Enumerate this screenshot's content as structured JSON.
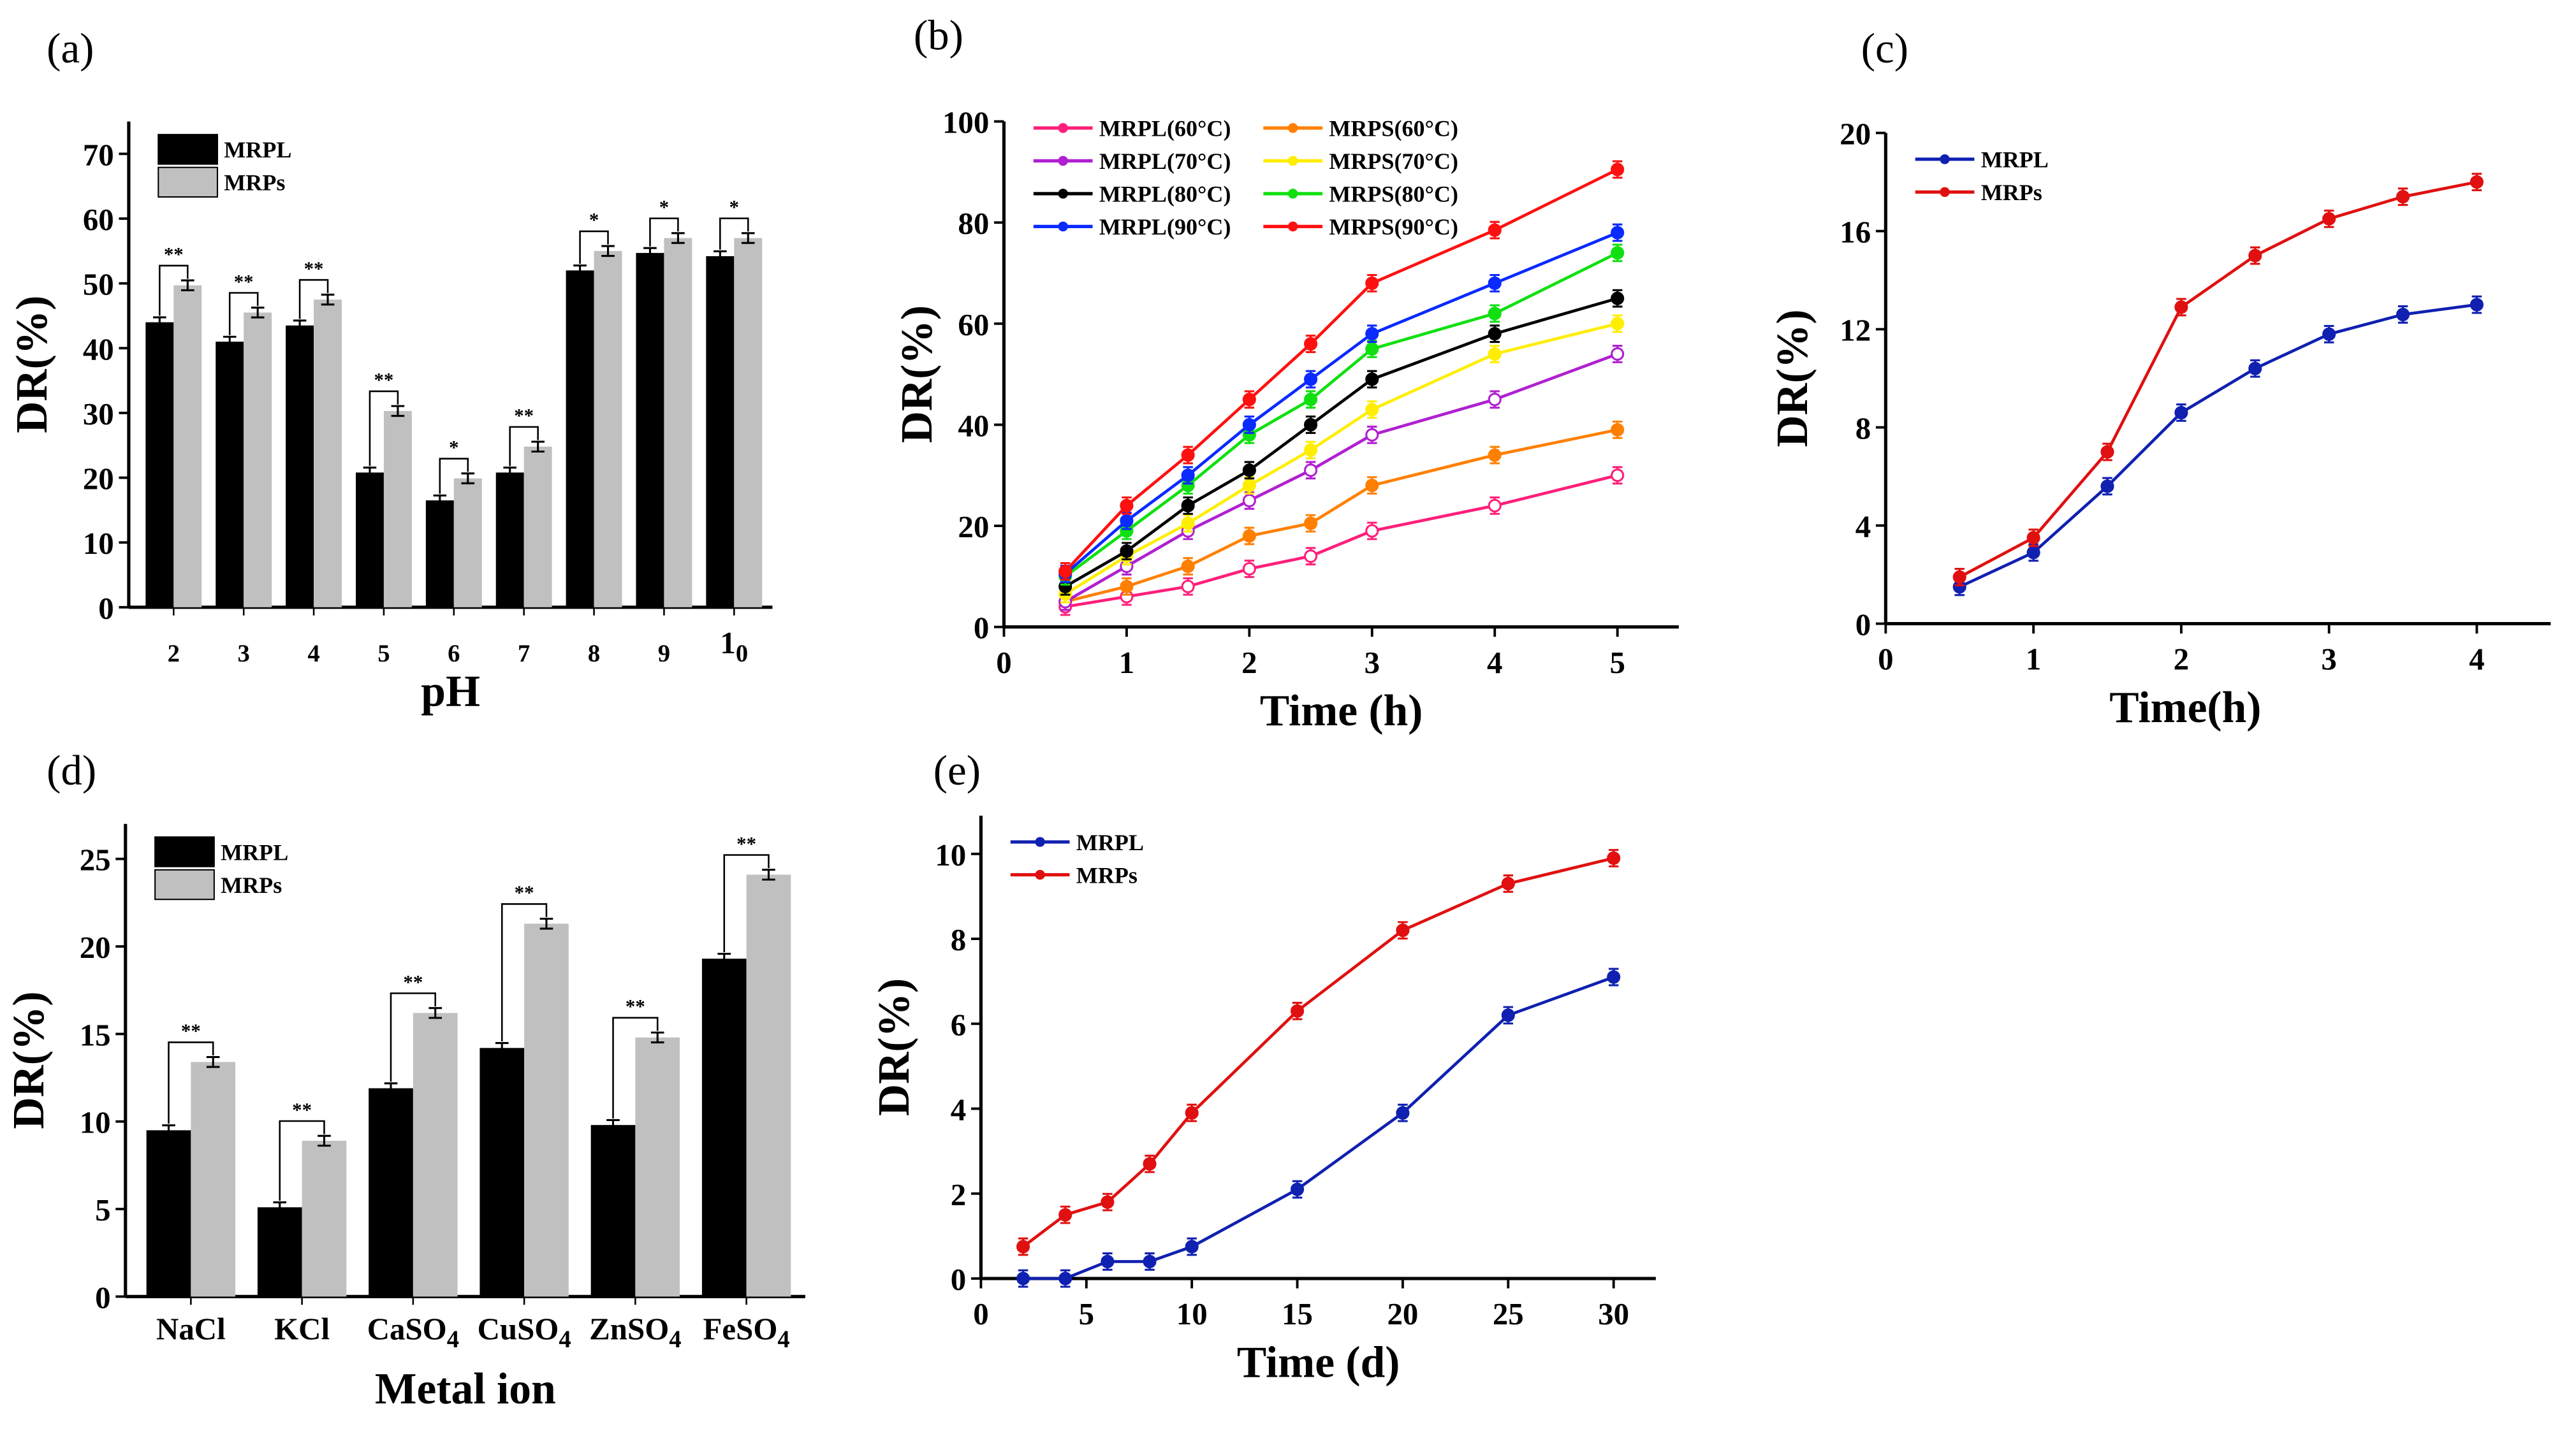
{
  "chart_data": [
    {
      "panel": "(a)",
      "type": "bar",
      "xlabel": "pH",
      "ylabel": "DR(%)",
      "ylim": [
        0,
        75
      ],
      "yticks": [
        0,
        10,
        20,
        30,
        40,
        50,
        60,
        70
      ],
      "categories": [
        "2",
        "3",
        "4",
        "5",
        "6",
        "7",
        "8",
        "9",
        "10"
      ],
      "series": [
        {
          "name": "MRPL",
          "color": "#000000",
          "values": [
            44,
            41,
            43.5,
            20.8,
            16.5,
            20.8,
            52,
            54.7,
            54.2
          ]
        },
        {
          "name": "MRPs",
          "color": "#c0c0c0",
          "values": [
            49.7,
            45.5,
            47.5,
            30.3,
            19.9,
            24.8,
            55,
            57,
            57
          ]
        }
      ],
      "significance": [
        "**",
        "**",
        "**",
        "**",
        "*",
        "**",
        "*",
        "*",
        "*"
      ],
      "legend": "top-left"
    },
    {
      "panel": "(b)",
      "type": "line",
      "xlabel": "Time (h)",
      "ylabel": "DR(%)",
      "xlim": [
        0,
        5.5
      ],
      "ylim": [
        0,
        100
      ],
      "xticks": [
        0,
        1,
        2,
        3,
        4,
        5
      ],
      "yticks": [
        0,
        20,
        40,
        60,
        80,
        100
      ],
      "x": [
        0.5,
        1,
        1.5,
        2,
        2.5,
        3,
        4,
        5
      ],
      "series": [
        {
          "name": "MRPL(60°C)",
          "color": "#ff1f7a",
          "values": [
            4,
            6,
            8,
            11.5,
            14,
            19,
            24,
            30
          ]
        },
        {
          "name": "MRPS(60°C)",
          "color": "#ff8000",
          "values": [
            5,
            8,
            12,
            18,
            20.5,
            28,
            34,
            39
          ]
        },
        {
          "name": "MRPL(70°C)",
          "color": "#b020d0",
          "values": [
            5,
            12,
            19,
            25,
            31,
            38,
            45,
            54
          ]
        },
        {
          "name": "MRPS(70°C)",
          "color": "#ffee00",
          "values": [
            6.5,
            14,
            20.5,
            28,
            35,
            43,
            54,
            60
          ]
        },
        {
          "name": "MRPL(80°C)",
          "color": "#000000",
          "values": [
            8,
            15,
            24,
            31,
            40,
            49,
            58,
            65
          ]
        },
        {
          "name": "MRPS(80°C)",
          "color": "#10e010",
          "values": [
            10,
            19,
            28,
            38,
            45,
            55,
            62,
            74
          ]
        },
        {
          "name": "MRPL(90°C)",
          "color": "#0a2aff",
          "values": [
            10.5,
            21,
            30,
            40,
            49,
            58,
            68,
            78
          ]
        },
        {
          "name": "MRPS(90°C)",
          "color": "#ff1010",
          "values": [
            11,
            24,
            34,
            45,
            56,
            68,
            78.5,
            90.5
          ]
        }
      ],
      "legend": "top-left"
    },
    {
      "panel": "(c)",
      "type": "line",
      "xlabel": "Time(h)",
      "ylabel": "DR(%)",
      "xlim": [
        0,
        4.5
      ],
      "ylim": [
        0,
        20
      ],
      "xticks": [
        0,
        1,
        2,
        3,
        4
      ],
      "yticks": [
        0,
        4,
        8,
        12,
        16,
        20
      ],
      "x": [
        0.5,
        1,
        1.5,
        2,
        2.5,
        3,
        3.5,
        4
      ],
      "series": [
        {
          "name": "MRPL",
          "color": "#1020b0",
          "values": [
            1.5,
            2.9,
            5.6,
            8.6,
            10.4,
            11.8,
            12.6,
            13
          ]
        },
        {
          "name": "MRPs",
          "color": "#e01010",
          "values": [
            1.9,
            3.5,
            7,
            12.9,
            15,
            16.5,
            17.4,
            18
          ]
        }
      ],
      "legend": "top-left"
    },
    {
      "panel": "(d)",
      "type": "bar",
      "xlabel": "Metal ion",
      "ylabel": "DR(%)",
      "ylim": [
        0,
        27
      ],
      "yticks": [
        0,
        5,
        10,
        15,
        20,
        25
      ],
      "categories": [
        "NaCl",
        "KCl",
        "CaSO4",
        "CuSO4",
        "ZnSO4",
        "FeSO4"
      ],
      "series": [
        {
          "name": "MRPL",
          "color": "#000000",
          "values": [
            9.5,
            5.1,
            11.9,
            14.2,
            9.8,
            19.3
          ]
        },
        {
          "name": "MRPs",
          "color": "#c0c0c0",
          "values": [
            13.4,
            8.9,
            16.2,
            21.3,
            14.8,
            24.1
          ]
        }
      ],
      "significance": [
        "**",
        "**",
        "**",
        "**",
        "**",
        "**"
      ],
      "legend": "top-left"
    },
    {
      "panel": "(e)",
      "type": "line",
      "xlabel": "Time (d)",
      "ylabel": "DR(%)",
      "xlim": [
        0,
        32
      ],
      "ylim": [
        0,
        10.9
      ],
      "xticks": [
        0,
        5,
        10,
        15,
        20,
        25,
        30
      ],
      "yticks": [
        0,
        2,
        4,
        6,
        8,
        10
      ],
      "x": [
        2,
        4,
        6,
        8,
        10,
        15,
        20,
        25,
        30
      ],
      "series": [
        {
          "name": "MRPL",
          "color": "#1020b0",
          "values": [
            0,
            0,
            0.4,
            0.4,
            0.75,
            2.1,
            3.9,
            6.2,
            7.1
          ]
        },
        {
          "name": "MRPs",
          "color": "#e01010",
          "values": [
            0.75,
            1.5,
            1.8,
            2.7,
            3.9,
            6.3,
            8.2,
            9.3,
            9.9
          ]
        }
      ],
      "legend": "top-left"
    }
  ]
}
